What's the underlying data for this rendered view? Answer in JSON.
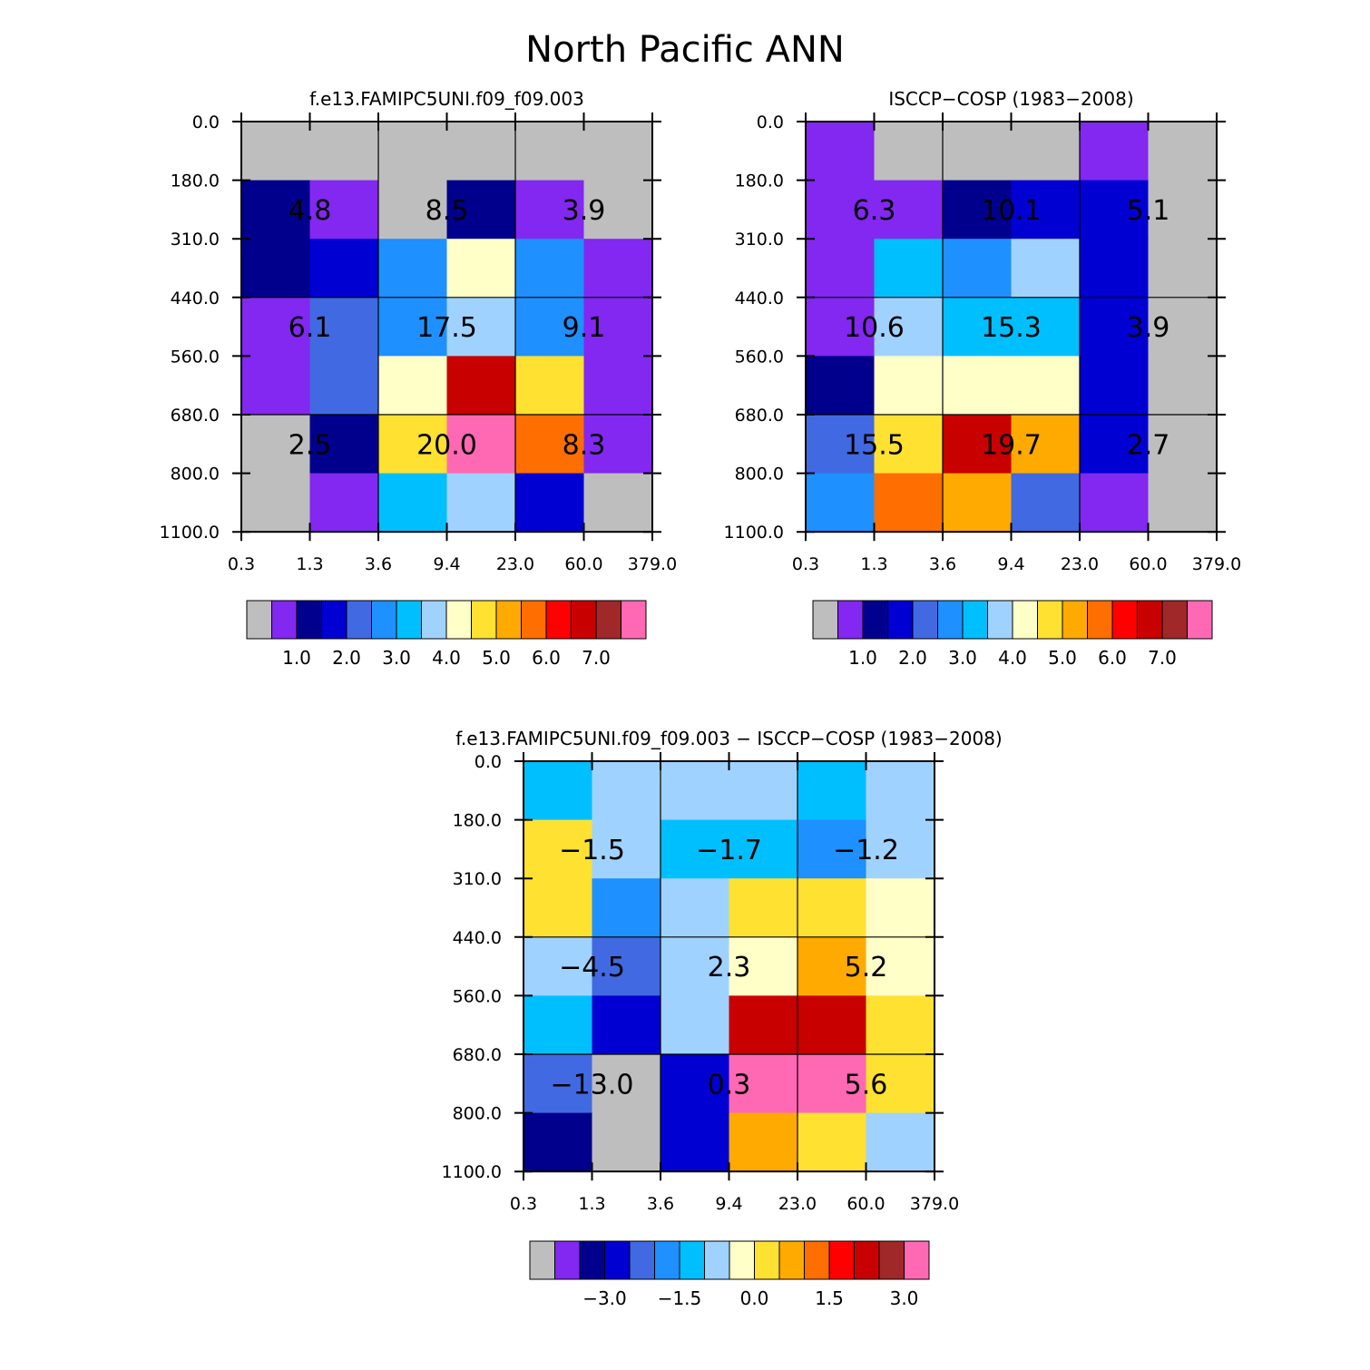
{
  "figure_title": "North Pacific ANN",
  "palette": {
    "gray": "#bebebe",
    "purple": "#8228f0",
    "navy": "#00008c",
    "blue": "#0000d2",
    "royal": "#4169e1",
    "dodger": "#1e90ff",
    "sky": "#00bfff",
    "lightblue": "#a0d2ff",
    "cream": "#ffffc8",
    "yellow": "#ffe132",
    "gold": "#ffaa00",
    "orange": "#ff6e00",
    "red": "#ff0000",
    "crimson": "#c80000",
    "brown": "#a02828",
    "pink": "#ff69b4"
  },
  "chart_data": [
    {
      "type": "heatmap",
      "title": "f.e13.FAMIPC5UNI.f09_f09.003",
      "x_tick_labels": [
        "0.3",
        "1.3",
        "3.6",
        "9.4",
        "23.0",
        "60.0",
        "379.0"
      ],
      "y_tick_labels": [
        "0.0",
        "180.0",
        "310.0",
        "440.0",
        "560.0",
        "680.0",
        "800.0",
        "1100.0"
      ],
      "cells": [
        [
          "gray",
          "gray",
          "gray",
          "gray",
          "gray",
          "gray"
        ],
        [
          "navy",
          "purple",
          "gray",
          "navy",
          "purple",
          "gray"
        ],
        [
          "navy",
          "blue",
          "dodger",
          "cream",
          "dodger",
          "purple"
        ],
        [
          "purple",
          "royal",
          "dodger",
          "lightblue",
          "dodger",
          "purple"
        ],
        [
          "purple",
          "royal",
          "cream",
          "crimson",
          "yellow",
          "purple"
        ],
        [
          "gray",
          "navy",
          "yellow",
          "pink",
          "orange",
          "purple"
        ],
        [
          "gray",
          "purple",
          "sky",
          "lightblue",
          "blue",
          "gray"
        ]
      ],
      "block_labels": [
        [
          "4.8",
          "8.5",
          "3.9"
        ],
        [
          "6.1",
          "17.5",
          "9.1"
        ],
        [
          "2.5",
          "20.0",
          "8.3"
        ]
      ],
      "colorbar": {
        "colors": [
          "gray",
          "purple",
          "navy",
          "blue",
          "royal",
          "dodger",
          "sky",
          "lightblue",
          "cream",
          "yellow",
          "gold",
          "orange",
          "red",
          "crimson",
          "brown",
          "pink"
        ],
        "labels": [
          "1.0",
          "2.0",
          "3.0",
          "4.0",
          "5.0",
          "6.0",
          "7.0"
        ]
      }
    },
    {
      "type": "heatmap",
      "title": "ISCCP-COSP (1983-2008)",
      "x_tick_labels": [
        "0.3",
        "1.3",
        "3.6",
        "9.4",
        "23.0",
        "60.0",
        "379.0"
      ],
      "y_tick_labels": [
        "0.0",
        "180.0",
        "310.0",
        "440.0",
        "560.0",
        "680.0",
        "800.0",
        "1100.0"
      ],
      "cells": [
        [
          "purple",
          "gray",
          "gray",
          "gray",
          "purple",
          "gray"
        ],
        [
          "purple",
          "purple",
          "navy",
          "blue",
          "blue",
          "gray"
        ],
        [
          "purple",
          "sky",
          "dodger",
          "lightblue",
          "blue",
          "gray"
        ],
        [
          "purple",
          "lightblue",
          "sky",
          "sky",
          "blue",
          "gray"
        ],
        [
          "navy",
          "cream",
          "cream",
          "cream",
          "blue",
          "gray"
        ],
        [
          "royal",
          "yellow",
          "crimson",
          "gold",
          "blue",
          "gray"
        ],
        [
          "dodger",
          "orange",
          "gold",
          "royal",
          "purple",
          "gray"
        ]
      ],
      "block_labels": [
        [
          "6.3",
          "10.1",
          "5.1"
        ],
        [
          "10.6",
          "15.3",
          "3.9"
        ],
        [
          "15.5",
          "19.7",
          "2.7"
        ]
      ],
      "colorbar": {
        "colors": [
          "gray",
          "purple",
          "navy",
          "blue",
          "royal",
          "dodger",
          "sky",
          "lightblue",
          "cream",
          "yellow",
          "gold",
          "orange",
          "red",
          "crimson",
          "brown",
          "pink"
        ],
        "labels": [
          "1.0",
          "2.0",
          "3.0",
          "4.0",
          "5.0",
          "6.0",
          "7.0"
        ]
      }
    },
    {
      "type": "heatmap",
      "title": "f.e13.FAMIPC5UNI.f09_f09.003 - ISCCP-COSP (1983-2008)",
      "x_tick_labels": [
        "0.3",
        "1.3",
        "3.6",
        "9.4",
        "23.0",
        "60.0",
        "379.0"
      ],
      "y_tick_labels": [
        "0.0",
        "180.0",
        "310.0",
        "440.0",
        "560.0",
        "680.0",
        "800.0",
        "1100.0"
      ],
      "cells": [
        [
          "sky",
          "lightblue",
          "lightblue",
          "lightblue",
          "sky",
          "lightblue"
        ],
        [
          "yellow",
          "lightblue",
          "sky",
          "sky",
          "dodger",
          "lightblue"
        ],
        [
          "yellow",
          "dodger",
          "lightblue",
          "yellow",
          "yellow",
          "cream"
        ],
        [
          "lightblue",
          "royal",
          "lightblue",
          "cream",
          "gold",
          "cream"
        ],
        [
          "sky",
          "blue",
          "lightblue",
          "crimson",
          "crimson",
          "yellow"
        ],
        [
          "royal",
          "gray",
          "blue",
          "pink",
          "pink",
          "yellow"
        ],
        [
          "navy",
          "gray",
          "blue",
          "gold",
          "yellow",
          "lightblue"
        ]
      ],
      "block_labels": [
        [
          "-1.5",
          "-1.7",
          "-1.2"
        ],
        [
          "-4.5",
          "2.3",
          "5.2"
        ],
        [
          "-13.0",
          "0.3",
          "5.6"
        ]
      ],
      "colorbar": {
        "colors": [
          "gray",
          "purple",
          "navy",
          "blue",
          "royal",
          "dodger",
          "sky",
          "lightblue",
          "cream",
          "yellow",
          "gold",
          "orange",
          "red",
          "crimson",
          "brown",
          "pink"
        ],
        "labels": [
          "-3.0",
          "-1.5",
          "0.0",
          "1.5",
          "3.0"
        ]
      }
    }
  ]
}
